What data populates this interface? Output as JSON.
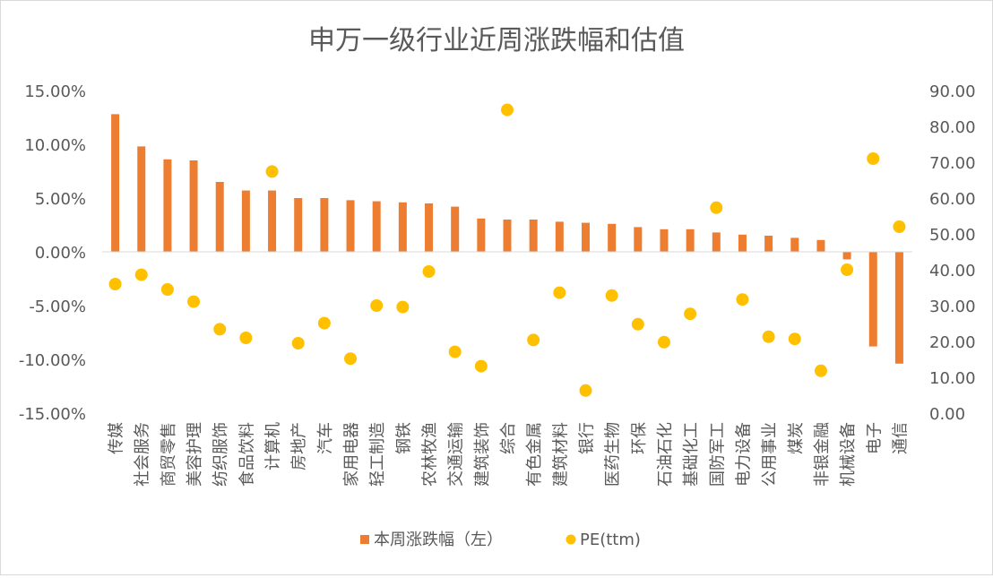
{
  "chart_data": {
    "type": "bar",
    "title": "申万一级行业近周涨跌幅和估值",
    "categories": [
      "传媒",
      "社会服务",
      "商贸零售",
      "美容护理",
      "纺织服饰",
      "食品饮料",
      "计算机",
      "房地产",
      "汽车",
      "家用电器",
      "轻工制造",
      "钢铁",
      "农林牧渔",
      "交通运输",
      "建筑装饰",
      "综合",
      "有色金属",
      "建筑材料",
      "银行",
      "医药生物",
      "环保",
      "石油石化",
      "基础化工",
      "国防军工",
      "电力设备",
      "公用事业",
      "煤炭",
      "非银金融",
      "机械设备",
      "电子",
      "通信"
    ],
    "series": [
      {
        "name": "本周涨跌幅（左）",
        "type": "bar",
        "axis": "left",
        "color": "#ED7D31",
        "values": [
          12.8,
          9.8,
          8.6,
          8.5,
          6.5,
          5.7,
          5.7,
          5.0,
          5.0,
          4.8,
          4.7,
          4.6,
          4.5,
          4.2,
          3.1,
          3.0,
          3.0,
          2.8,
          2.7,
          2.6,
          2.3,
          2.1,
          2.1,
          1.8,
          1.6,
          1.5,
          1.3,
          1.1,
          -0.7,
          -8.8,
          -10.4
        ]
      },
      {
        "name": "PE(ttm)",
        "type": "scatter",
        "axis": "right",
        "color": "#FFC000",
        "values": [
          36.0,
          38.6,
          34.5,
          31.1,
          23.4,
          21.0,
          67.4,
          19.5,
          25.1,
          15.2,
          30.0,
          29.6,
          39.5,
          17.1,
          13.1,
          84.6,
          20.4,
          33.6,
          6.3,
          32.8,
          24.8,
          19.8,
          27.7,
          57.3,
          31.7,
          21.3,
          20.7,
          11.8,
          40.0,
          71.0,
          52.0
        ]
      }
    ],
    "y_left": {
      "min": -15,
      "max": 15,
      "step": 5,
      "tick_labels": [
        "-15.00%",
        "-10.00%",
        "-5.00%",
        "0.00%",
        "5.00%",
        "10.00%",
        "15.00%"
      ]
    },
    "y_right": {
      "min": 0,
      "max": 90,
      "step": 10,
      "tick_labels": [
        "0.00",
        "10.00",
        "20.00",
        "30.00",
        "40.00",
        "50.00",
        "60.00",
        "70.00",
        "80.00",
        "90.00"
      ]
    },
    "grid": false,
    "legend_position": "bottom"
  }
}
